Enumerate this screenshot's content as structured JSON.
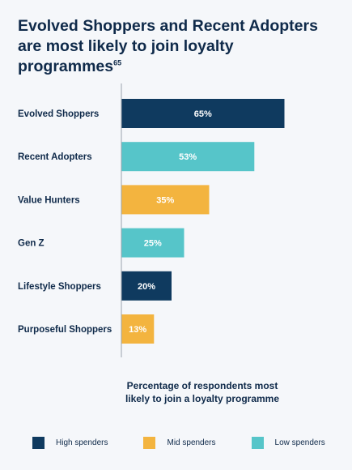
{
  "title": {
    "line1": "Evolved Shoppers and Recent Adopters",
    "line2": "are most likely to join loyalty programmes",
    "footnote": "65"
  },
  "chart_data": {
    "type": "bar",
    "orientation": "horizontal",
    "categories": [
      "Evolved Shoppers",
      "Recent Adopters",
      "Value Hunters",
      "Gen Z",
      "Lifestyle Shoppers",
      "Purposeful Shoppers"
    ],
    "values": [
      65,
      53,
      35,
      25,
      20,
      13
    ],
    "value_labels": [
      "65%",
      "53%",
      "35%",
      "25%",
      "20%",
      "13%"
    ],
    "groups": [
      "High spenders",
      "Low spenders",
      "Mid spenders",
      "Low spenders",
      "High spenders",
      "Mid spenders"
    ],
    "xlabel": "Percentage of respondents most likely to join a loyalty programme",
    "xlim": [
      0,
      75
    ],
    "grid": false,
    "legend_position": "bottom"
  },
  "xlabel_lines": [
    "Percentage of respondents most",
    "likely to join a loyalty programme"
  ],
  "legend": [
    {
      "label": "High spenders",
      "color": "#0f3a5f"
    },
    {
      "label": "Mid spenders",
      "color": "#f3b43f"
    },
    {
      "label": "Low spenders",
      "color": "#56c5c9"
    }
  ]
}
